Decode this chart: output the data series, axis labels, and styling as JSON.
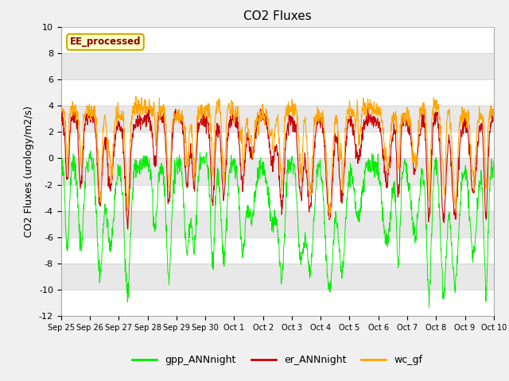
{
  "title": "CO2 Fluxes",
  "ylabel": "CO2 Fluxes (urology/m2/s)",
  "ylim": [
    -12,
    10
  ],
  "yticks": [
    -12,
    -10,
    -8,
    -6,
    -4,
    -2,
    0,
    2,
    4,
    6,
    8,
    10
  ],
  "xtick_labels": [
    "Sep 25",
    "Sep 26",
    "Sep 27",
    "Sep 28",
    "Sep 29",
    "Sep 30",
    "Oct 1",
    "Oct 2",
    "Oct 3",
    "Oct 4",
    "Oct 5",
    "Oct 6",
    "Oct 7",
    "Oct 8",
    "Oct 9",
    "Oct 10"
  ],
  "ee_label": "EE_processed",
  "legend_entries": [
    "gpp_ANNnight",
    "er_ANNnight",
    "wc_gf"
  ],
  "line_colors": [
    "#00ee00",
    "#cc0000",
    "#ffa500"
  ],
  "plot_bg_color": "#e8e8e8",
  "fig_bg_color": "#f0f0f0",
  "white_band_color": "#ffffff",
  "title_fontsize": 11,
  "axis_fontsize": 9,
  "tick_fontsize": 8,
  "n_points": 1440,
  "seed": 7
}
